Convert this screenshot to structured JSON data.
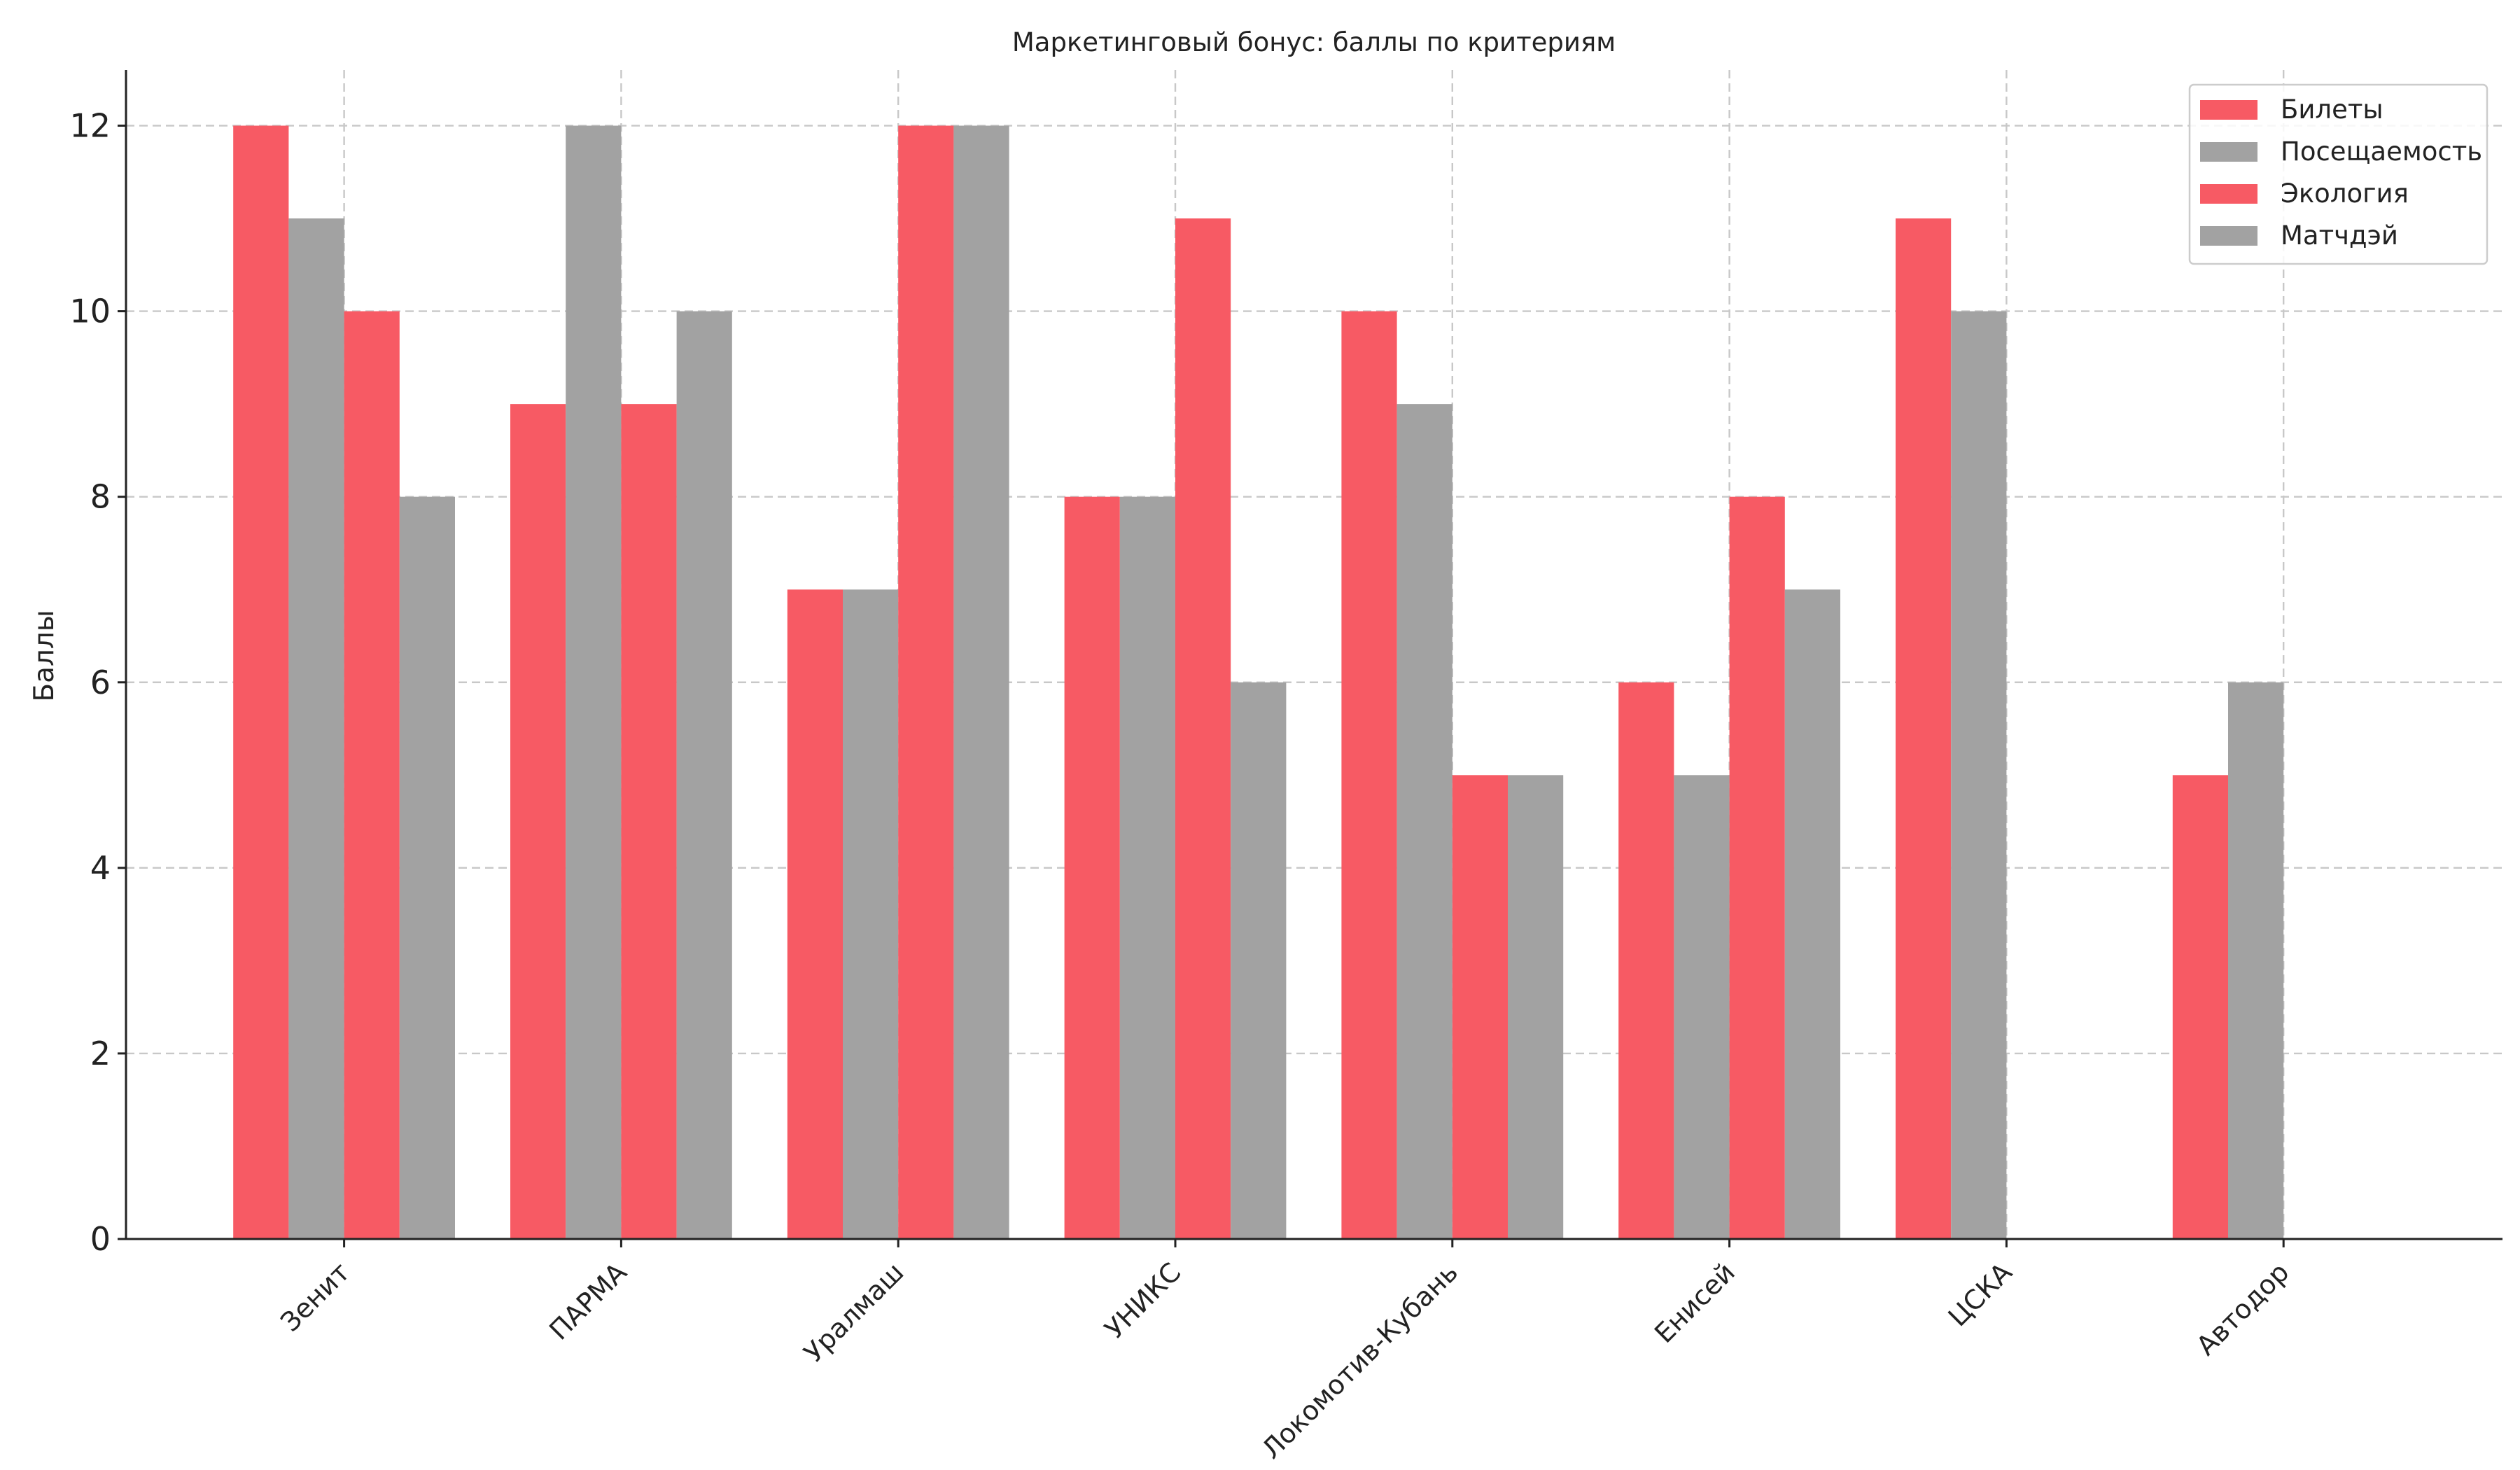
{
  "chart_data": {
    "type": "bar",
    "title": "Маркетинговый бонус: баллы по критериям",
    "xlabel": "",
    "ylabel": "Баллы",
    "ylim": [
      0,
      12.6
    ],
    "yticks": [
      0,
      2,
      4,
      6,
      8,
      10,
      12
    ],
    "grid": true,
    "legend_position": "top-right",
    "categories": [
      "Зенит",
      "ПАРМА",
      "Уралмаш",
      "УНИКС",
      "Локомотив-Кубань",
      "Енисей",
      "ЦСКА",
      "Автодор"
    ],
    "series": [
      {
        "name": "Билеты",
        "color": "#f75a64",
        "values": [
          12,
          9,
          7,
          8,
          10,
          6,
          11,
          5
        ]
      },
      {
        "name": "Посещаемость",
        "color": "#a2a2a2",
        "values": [
          11,
          12,
          7,
          8,
          9,
          5,
          10,
          6
        ]
      },
      {
        "name": "Экология",
        "color": "#f75a64",
        "values": [
          10,
          9,
          12,
          11,
          5,
          8,
          null,
          null
        ]
      },
      {
        "name": "Матчдэй",
        "color": "#a2a2a2",
        "values": [
          8,
          10,
          12,
          6,
          5,
          7,
          null,
          null
        ]
      }
    ]
  }
}
